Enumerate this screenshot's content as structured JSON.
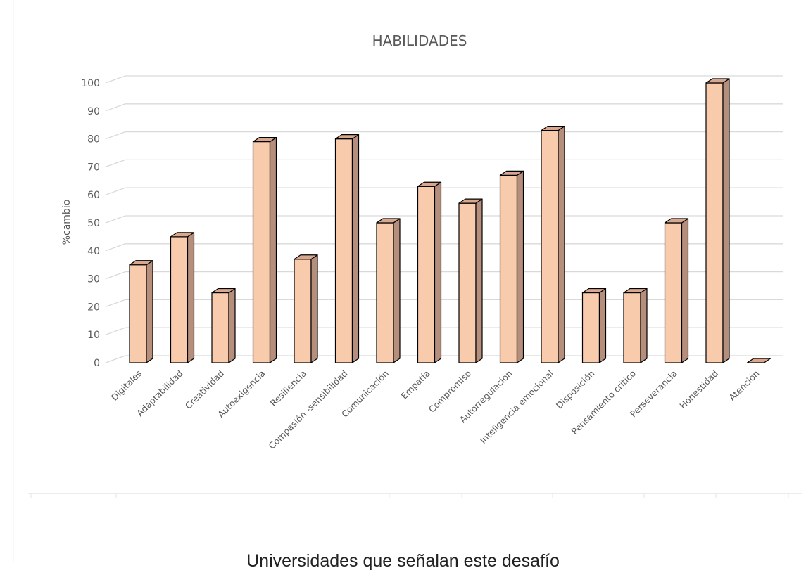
{
  "chart_data": {
    "type": "bar",
    "title": "HABILIDADES",
    "ylabel": "%cambio",
    "xlabel": "",
    "ylim": [
      0,
      100
    ],
    "yticks": [
      0,
      10,
      20,
      30,
      40,
      50,
      60,
      70,
      80,
      90,
      100
    ],
    "grid": true,
    "style": "3d-column",
    "colors": {
      "bar_front": "#f8cbad",
      "bar_side": "#b58f7c",
      "bar_top": "#d9a78d",
      "grid": "#d9d9d9",
      "text": "#595959"
    },
    "categories": [
      "Digitales",
      "Adaptabilidad",
      "Creatividad",
      "Autoexigencia",
      "Resiliencia",
      "Compasión -sensibilidad",
      "Comunicación",
      "Empatía",
      "Compromiso",
      "Autorregulación",
      "Inteligencia emocional",
      "Disposición",
      "Pensamiento critico",
      "Perseverancia",
      "Honestidad",
      "Atención"
    ],
    "values": [
      35,
      45,
      25,
      79,
      37,
      80,
      50,
      63,
      57,
      67,
      83,
      25,
      25,
      50,
      100,
      0
    ]
  },
  "caption": "Universidades que señalan este desafío"
}
